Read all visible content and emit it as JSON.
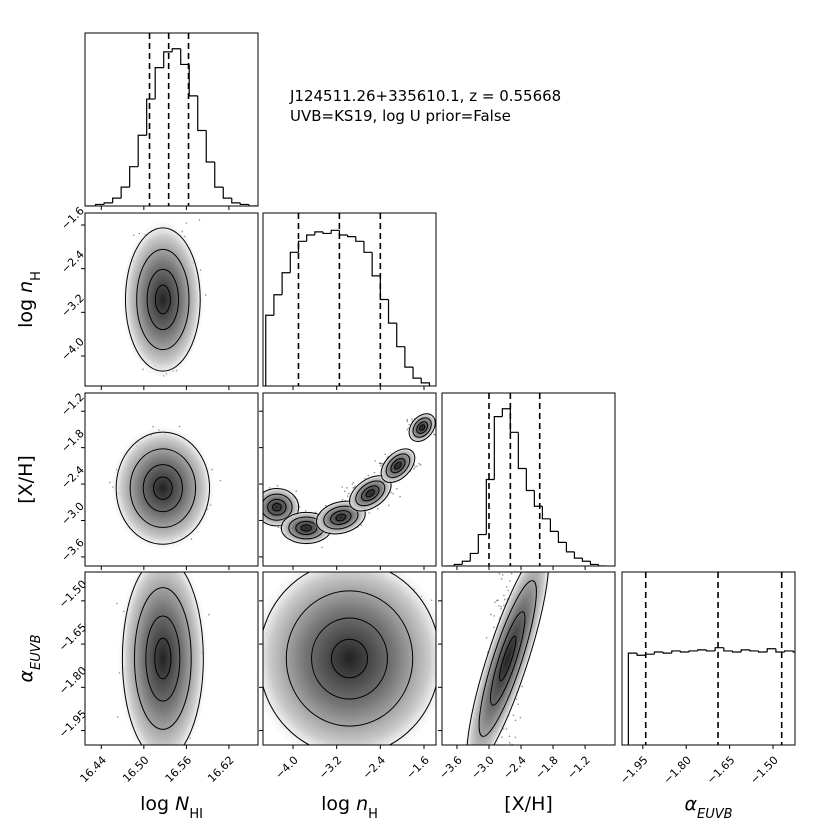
{
  "chart_data": {
    "type": "corner",
    "annotation": [
      "J124511.26+335610.1, z = 0.55668",
      "UVB=KS19, log U prior=False"
    ],
    "parameters": [
      {
        "label": [
          "log ",
          "N",
          "HI"
        ],
        "label_styles": [
          "normal",
          "italic",
          "sub"
        ],
        "lim": [
          16.417,
          16.661
        ],
        "ticks": [
          {
            "value": 16.44,
            "label": "16.44"
          },
          {
            "value": 16.5,
            "label": "16.50"
          },
          {
            "value": 16.56,
            "label": "16.56"
          },
          {
            "value": 16.62,
            "label": "16.62"
          }
        ],
        "quantiles": [
          16.508,
          16.535,
          16.563
        ],
        "hist": {
          "bins": [
            16.42,
            16.432,
            16.444,
            16.456,
            16.468,
            16.48,
            16.492,
            16.504,
            16.516,
            16.528,
            16.54,
            16.552,
            16.564,
            16.576,
            16.588,
            16.6,
            16.612,
            16.624,
            16.636,
            16.648,
            16.66
          ],
          "counts": [
            0,
            1,
            2,
            5,
            12,
            25,
            45,
            68,
            88,
            98,
            100,
            90,
            70,
            48,
            28,
            12,
            5,
            2,
            1,
            0
          ],
          "ylim": [
            0,
            110
          ]
        }
      },
      {
        "label": [
          "log ",
          "n",
          "H"
        ],
        "label_styles": [
          "normal",
          "italic",
          "sub"
        ],
        "lim": [
          -4.55,
          -1.38
        ],
        "ticks": [
          {
            "value": -4.0,
            "label": "−4.0"
          },
          {
            "value": -3.2,
            "label": "−3.2"
          },
          {
            "value": -2.4,
            "label": "−2.4"
          },
          {
            "value": -1.6,
            "label": "−1.6"
          }
        ],
        "quantiles": [
          -3.9,
          -3.15,
          -2.4
        ],
        "hist": {
          "bins": [
            -4.5,
            -4.35,
            -4.2,
            -4.05,
            -3.9,
            -3.75,
            -3.6,
            -3.45,
            -3.3,
            -3.15,
            -3.0,
            -2.85,
            -2.7,
            -2.55,
            -2.4,
            -2.25,
            -2.1,
            -1.95,
            -1.8,
            -1.65,
            -1.5
          ],
          "counts": [
            45,
            58,
            72,
            85,
            92,
            96,
            98,
            97,
            99,
            96,
            95,
            92,
            85,
            70,
            55,
            40,
            25,
            12,
            5,
            2
          ],
          "ylim": [
            0,
            110
          ]
        }
      },
      {
        "label": [
          "[X/H]"
        ],
        "label_styles": [
          "normal"
        ],
        "lim": [
          -3.88,
          -0.64
        ],
        "ylim": [
          -3.75,
          -0.9
        ],
        "ticks": [
          {
            "value": -3.6,
            "label": "−3.6"
          },
          {
            "value": -3.0,
            "label": "−3.0"
          },
          {
            "value": -2.4,
            "label": "−2.4"
          },
          {
            "value": -1.8,
            "label": "−1.8"
          },
          {
            "value": -1.2,
            "label": "−1.2"
          }
        ],
        "quantiles": [
          -3.0,
          -2.6,
          -2.05
        ],
        "hist": {
          "bins": [
            -3.8,
            -3.65,
            -3.5,
            -3.35,
            -3.2,
            -3.05,
            -2.9,
            -2.75,
            -2.6,
            -2.45,
            -2.3,
            -2.15,
            -2.0,
            -1.85,
            -1.7,
            -1.55,
            -1.4,
            -1.25,
            -1.1,
            -0.95,
            -0.8
          ],
          "counts": [
            0,
            1,
            3,
            8,
            20,
            55,
            95,
            100,
            85,
            62,
            48,
            38,
            30,
            22,
            15,
            9,
            5,
            3,
            1,
            0
          ],
          "ylim": [
            0,
            110
          ]
        }
      },
      {
        "label": [
          "α",
          "EUVB"
        ],
        "label_styles": [
          "italic",
          "sub"
        ],
        "lim": [
          -2.022,
          -1.424
        ],
        "ylim": [
          -2.0,
          -1.4
        ],
        "ticks": [
          {
            "value": -1.95,
            "label": "−1.95"
          },
          {
            "value": -1.8,
            "label": "−1.80"
          },
          {
            "value": -1.65,
            "label": "−1.65"
          },
          {
            "value": -1.5,
            "label": "−1.50"
          }
        ],
        "quantiles": [
          -1.94,
          -1.69,
          -1.47
        ],
        "hist": {
          "bins": [
            -2.0,
            -1.97,
            -1.94,
            -1.91,
            -1.88,
            -1.85,
            -1.82,
            -1.79,
            -1.76,
            -1.73,
            -1.7,
            -1.67,
            -1.64,
            -1.61,
            -1.58,
            -1.55,
            -1.52,
            -1.49,
            -1.46,
            -1.43,
            -1.4
          ],
          "counts": [
            85,
            83,
            84,
            86,
            85,
            87,
            86,
            87,
            88,
            87,
            90,
            87,
            86,
            88,
            87,
            86,
            89,
            86,
            87,
            86
          ],
          "ylim": [
            0,
            160
          ]
        }
      }
    ]
  }
}
